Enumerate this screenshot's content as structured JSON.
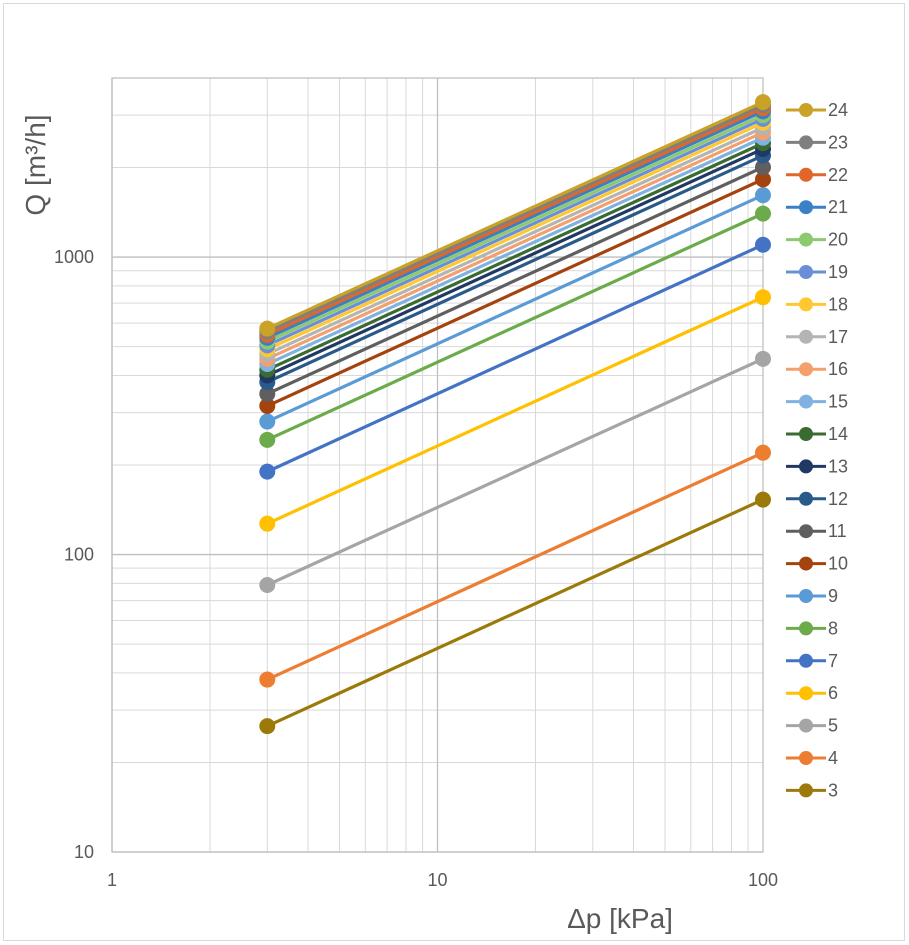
{
  "chart_data": {
    "type": "line",
    "title": "",
    "xlabel": "Δp  [kPa]",
    "ylabel": "Q  [m³/h]",
    "x_scale": "log",
    "y_scale": "log",
    "xlim": [
      1,
      100
    ],
    "ylim": [
      10,
      4000
    ],
    "x_tick_labels": [
      "1",
      "10",
      "100"
    ],
    "y_tick_labels": [
      "10",
      "100",
      "1000"
    ],
    "grid": true,
    "legend_position": "right",
    "x": [
      3,
      100
    ],
    "series": [
      {
        "name": "24",
        "color": "#C9A227",
        "values": [
          575,
          3320
        ]
      },
      {
        "name": "23",
        "color": "#7F7F7F",
        "values": [
          562,
          3245
        ]
      },
      {
        "name": "22",
        "color": "#E0662A",
        "values": [
          548,
          3165
        ]
      },
      {
        "name": "21",
        "color": "#3A80C4",
        "values": [
          535,
          3090
        ]
      },
      {
        "name": "20",
        "color": "#8DC96E",
        "values": [
          520,
          3000
        ]
      },
      {
        "name": "19",
        "color": "#6A8FD6",
        "values": [
          505,
          2915
        ]
      },
      {
        "name": "18",
        "color": "#FFC830",
        "values": [
          490,
          2830
        ]
      },
      {
        "name": "17",
        "color": "#B4B4B4",
        "values": [
          472,
          2725
        ]
      },
      {
        "name": "16",
        "color": "#F4A06D",
        "values": [
          455,
          2625
        ]
      },
      {
        "name": "15",
        "color": "#7FB2E0",
        "values": [
          437,
          2520
        ]
      },
      {
        "name": "14",
        "color": "#3A6B30",
        "values": [
          418,
          2415
        ]
      },
      {
        "name": "13",
        "color": "#203864",
        "values": [
          400,
          2310
        ]
      },
      {
        "name": "12",
        "color": "#2A5A8A",
        "values": [
          380,
          2195
        ]
      },
      {
        "name": "11",
        "color": "#5F5F5F",
        "values": [
          347,
          2005
        ]
      },
      {
        "name": "10",
        "color": "#A5430F",
        "values": [
          316,
          1825
        ]
      },
      {
        "name": "9",
        "color": "#5B9BD5",
        "values": [
          280,
          1615
        ]
      },
      {
        "name": "8",
        "color": "#6BAB4A",
        "values": [
          243,
          1400
        ]
      },
      {
        "name": "7",
        "color": "#4472C4",
        "values": [
          190,
          1100
        ]
      },
      {
        "name": "6",
        "color": "#FFC000",
        "values": [
          127,
          733
        ]
      },
      {
        "name": "5",
        "color": "#A5A5A5",
        "values": [
          79,
          455
        ]
      },
      {
        "name": "4",
        "color": "#ED7D31",
        "values": [
          38,
          220
        ]
      },
      {
        "name": "3",
        "color": "#9C7A0A",
        "values": [
          26.5,
          153
        ]
      }
    ]
  }
}
